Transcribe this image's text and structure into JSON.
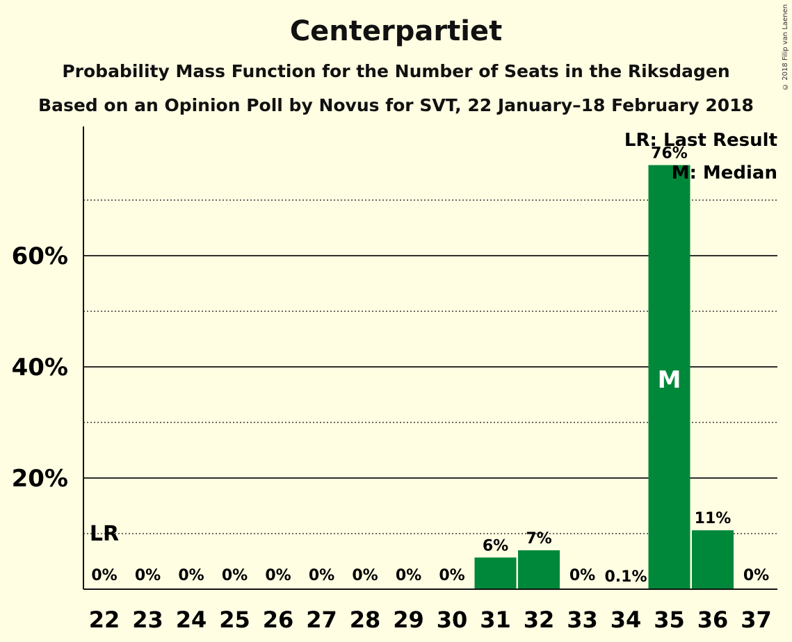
{
  "header": {
    "title": "Centerpartiet",
    "subtitle1": "Probability Mass Function for the Number of Seats in the Riksdagen",
    "subtitle2": "Based on an Opinion Poll by Novus for SVT, 22 January–18 February 2018",
    "copyright": "© 2018 Filip van Laenen"
  },
  "legend": {
    "lr": "LR: Last Result",
    "median": "M: Median"
  },
  "colors": {
    "background": "#fffde2",
    "bar": "#00883a"
  },
  "chart_data": {
    "type": "bar",
    "categories": [
      "22",
      "23",
      "24",
      "25",
      "26",
      "27",
      "28",
      "29",
      "30",
      "31",
      "32",
      "33",
      "34",
      "35",
      "36",
      "37"
    ],
    "values": [
      0,
      0,
      0,
      0,
      0,
      0,
      0,
      0,
      0,
      5.7,
      7.0,
      0,
      0.1,
      76.3,
      10.6,
      0
    ],
    "value_labels": [
      "0%",
      "0%",
      "0%",
      "0%",
      "0%",
      "0%",
      "0%",
      "0%",
      "0%",
      "6%",
      "7%",
      "0%",
      "0.1%",
      "76%",
      "11%",
      "0%"
    ],
    "yticks": [
      20,
      40,
      60
    ],
    "ytick_labels": [
      "20%",
      "40%",
      "60%"
    ],
    "minor_gridlines": [
      10,
      30,
      50,
      70
    ],
    "ylim": [
      0,
      83
    ],
    "last_result": {
      "category": "22",
      "label": "LR"
    },
    "median": {
      "category": "35",
      "label": "M"
    }
  }
}
